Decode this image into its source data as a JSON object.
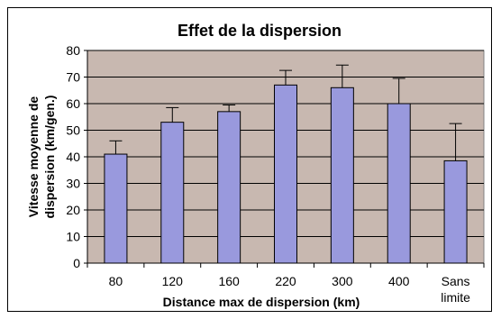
{
  "chart_data": {
    "type": "bar",
    "title": "Effet de la dispersion",
    "xlabel": "Distance max de dispersion (km)",
    "ylabel": [
      "Vitesse moyenne de",
      "dispersion (km/gen.)"
    ],
    "categories": [
      [
        "80"
      ],
      [
        "120"
      ],
      [
        "160"
      ],
      [
        "220"
      ],
      [
        "300"
      ],
      [
        "400"
      ],
      [
        "Sans",
        "limite"
      ]
    ],
    "values": [
      41,
      53,
      57,
      67,
      66,
      60,
      38.5
    ],
    "error_bar_tops": [
      46,
      58.5,
      59.5,
      72.5,
      74.5,
      69.5,
      52.5
    ],
    "ylim": [
      0,
      80
    ],
    "y_ticks": [
      0,
      10,
      20,
      30,
      40,
      50,
      60,
      70,
      80
    ],
    "grid": true,
    "legend": "none",
    "colors": {
      "bar_fill": "#9999dd",
      "plot_background": "#c8b8b0",
      "gridline": "#000000"
    }
  }
}
